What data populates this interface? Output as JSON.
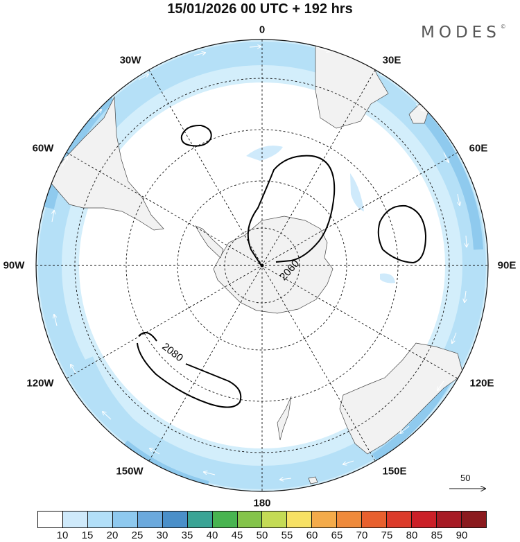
{
  "header": {
    "title": "15/01/2026  00 UTC  + 192 hrs",
    "logo": "MODES",
    "logo_mark": "©"
  },
  "map": {
    "projection": "south-polar-stereographic",
    "longitude_labels": {
      "lon_0": "0",
      "lon_30e": "30E",
      "lon_60e": "60E",
      "lon_90e": "90E",
      "lon_120e": "120E",
      "lon_150e": "150E",
      "lon_180": "180",
      "lon_150w": "150W",
      "lon_120w": "120W",
      "lon_90w": "90W",
      "lon_60w": "60W",
      "lon_30w": "30W"
    },
    "contours": [
      {
        "value": 2060,
        "label": "2060"
      },
      {
        "value": 2080,
        "label": "2080"
      }
    ],
    "reference_vector": {
      "value": 50,
      "label": "50"
    },
    "colors": {
      "ocean": "#ffffff",
      "land": "#f2f2f2",
      "jet_light": "#d3eefb",
      "jet_mid": "#b5e0f7",
      "jet_strong": "#8fcaee",
      "arrow": "#ffffff",
      "contour": "#000000"
    }
  },
  "colorbar": {
    "colors": [
      "#ffffff",
      "#cfeafb",
      "#b2dff8",
      "#8ec9ef",
      "#6ba9dd",
      "#4a8fc9",
      "#3aa495",
      "#48b450",
      "#84c44a",
      "#c4db55",
      "#f7e164",
      "#f4ab4a",
      "#ef8a3b",
      "#e8602e",
      "#dc3b2a",
      "#cb2028",
      "#a71a24",
      "#8b1a1e"
    ],
    "ticks": [
      "10",
      "15",
      "20",
      "25",
      "30",
      "35",
      "40",
      "45",
      "50",
      "55",
      "60",
      "65",
      "70",
      "75",
      "80",
      "85",
      "90"
    ]
  }
}
